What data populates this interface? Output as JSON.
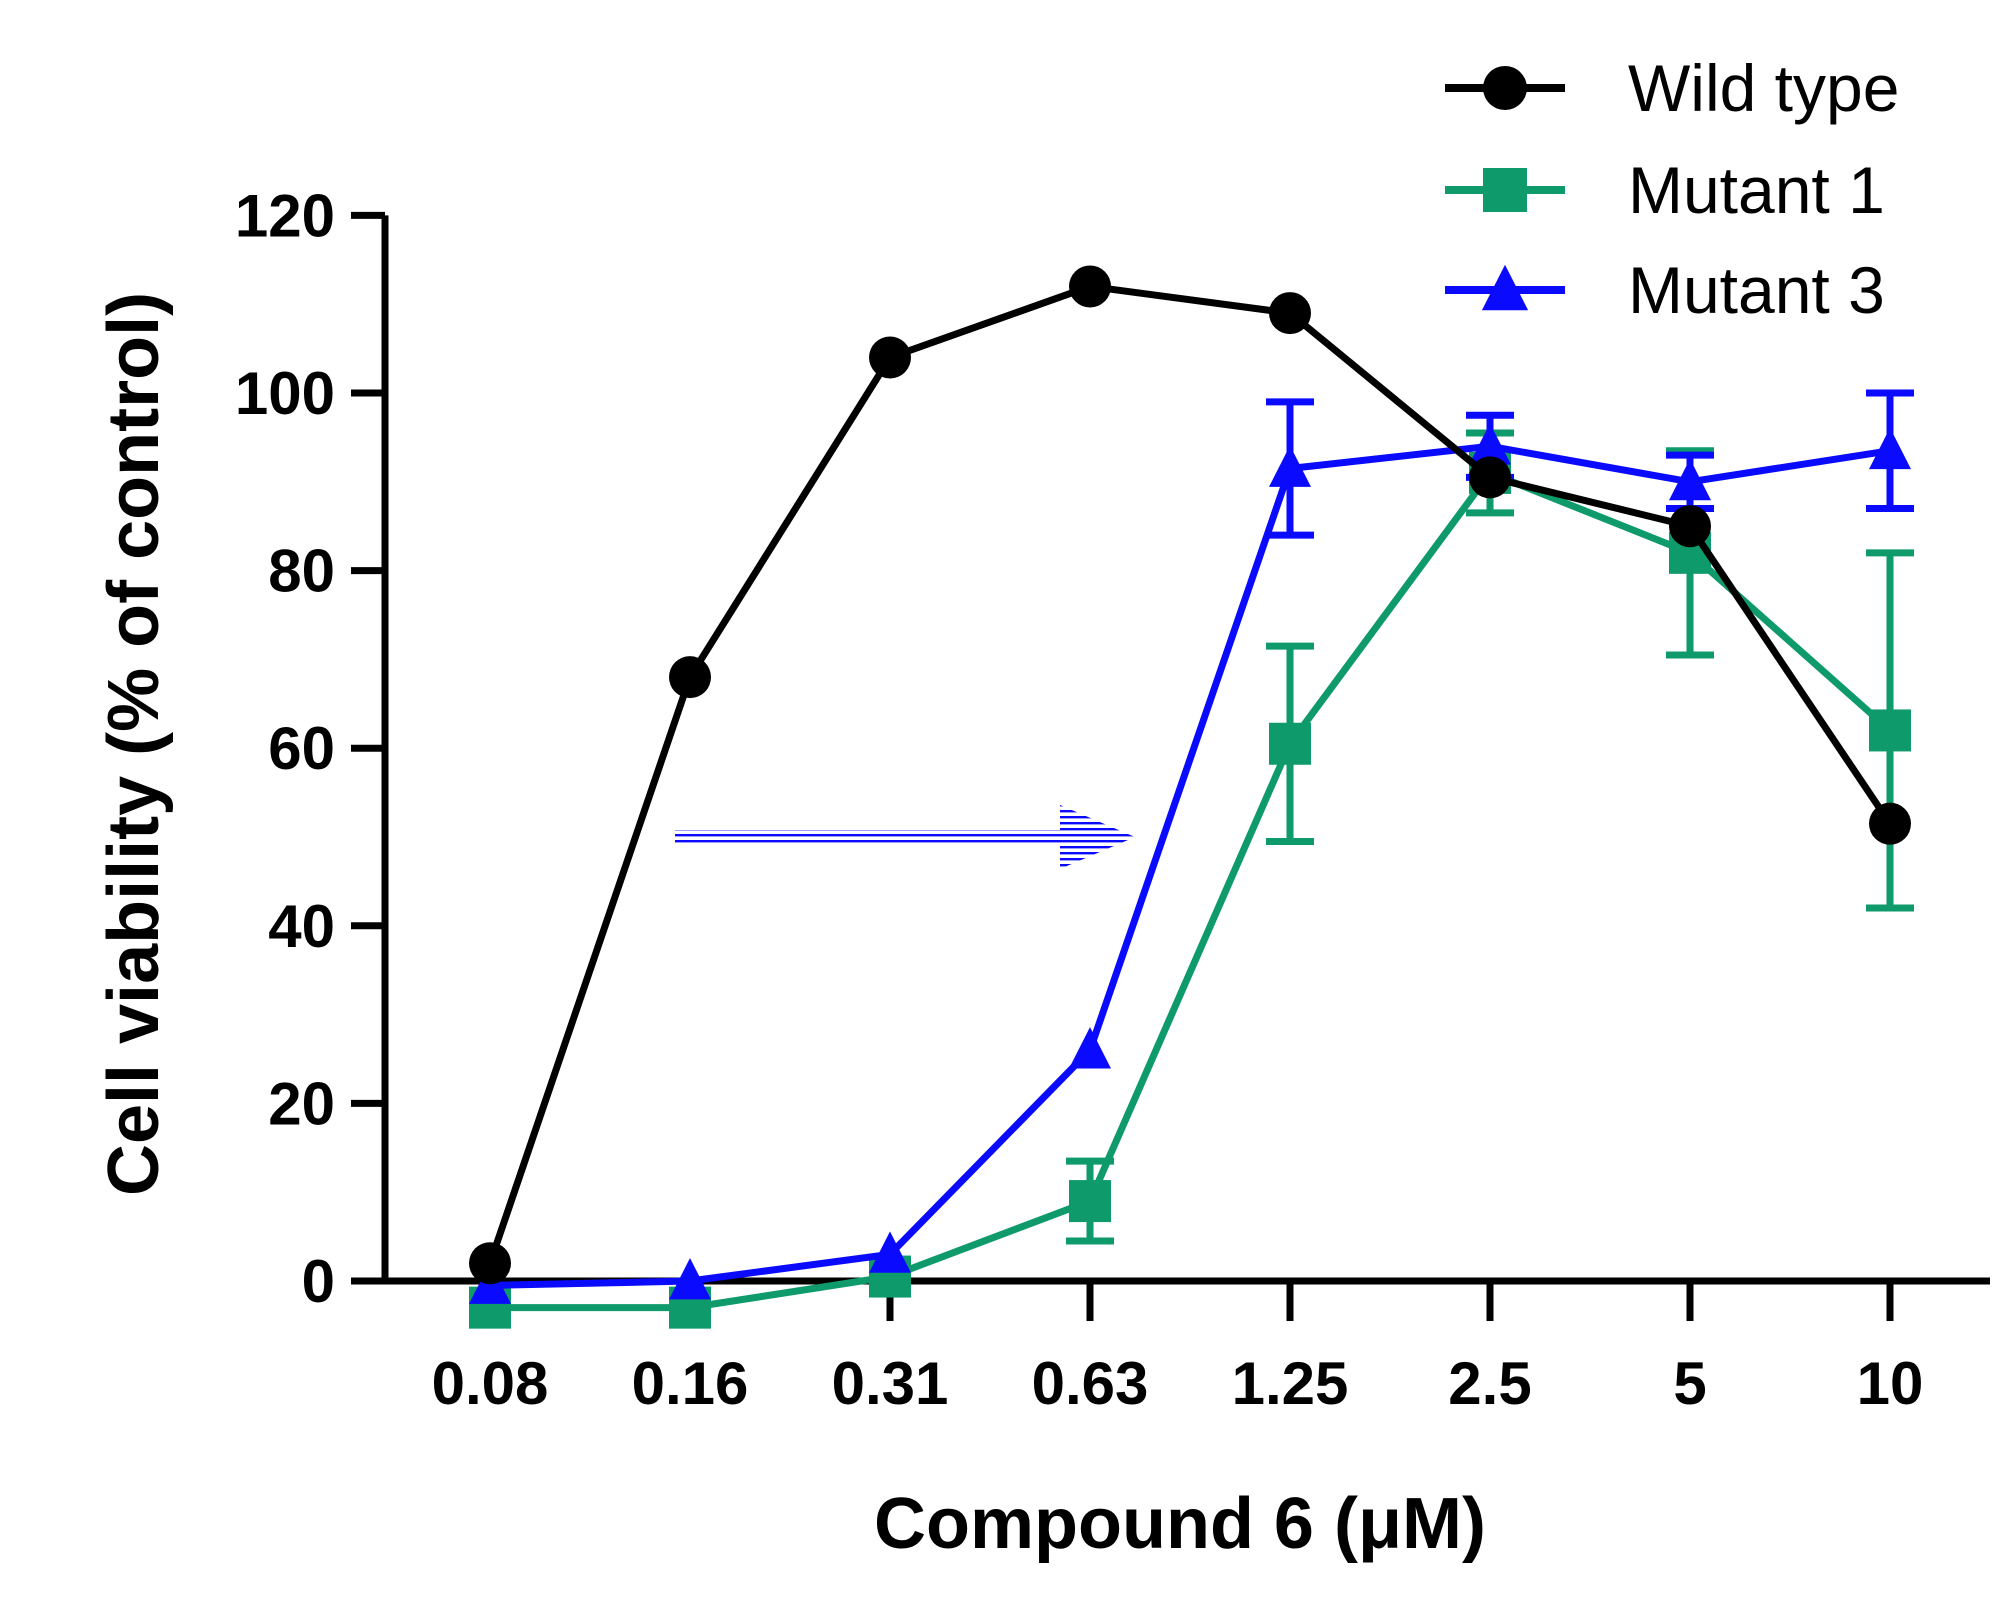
{
  "chart_data": {
    "type": "line",
    "title": "",
    "xlabel": "Compound 6 (μM)",
    "ylabel": "Cell viability (% of control)",
    "ylim": [
      0,
      120
    ],
    "yticks": [
      "0",
      "20",
      "40",
      "60",
      "80",
      "100",
      "120"
    ],
    "categories": [
      "0.08",
      "0.16",
      "0.31",
      "0.63",
      "1.25",
      "2.5",
      "5",
      "10"
    ],
    "grid": false,
    "legend_position": "top-right",
    "series": [
      {
        "name": "Wild type",
        "color": "#000000",
        "marker": "circle",
        "values": [
          2,
          68,
          104,
          112,
          109,
          90.5,
          85,
          51.5
        ],
        "errors": [
          0,
          0,
          0,
          0,
          0,
          0,
          0,
          0
        ]
      },
      {
        "name": "Mutant 1",
        "color": "#0e9a6a",
        "marker": "square",
        "values": [
          -3,
          -3,
          0.5,
          9,
          60.5,
          91,
          82,
          62
        ],
        "errors": [
          0,
          0,
          0,
          4.5,
          11,
          4.5,
          11.5,
          20
        ]
      },
      {
        "name": "Mutant 3",
        "color": "#0a0aff",
        "marker": "triangle",
        "values": [
          -0.5,
          0,
          3,
          26,
          91.5,
          94,
          90,
          93.5
        ],
        "errors": [
          0,
          0,
          0,
          0,
          7.5,
          3.5,
          3,
          6.5
        ]
      }
    ],
    "annotations": [
      {
        "type": "arrow",
        "direction": "right",
        "color": "#0a0aff",
        "y": 50,
        "from_category": "0.16",
        "to_category": "0.63"
      }
    ]
  }
}
